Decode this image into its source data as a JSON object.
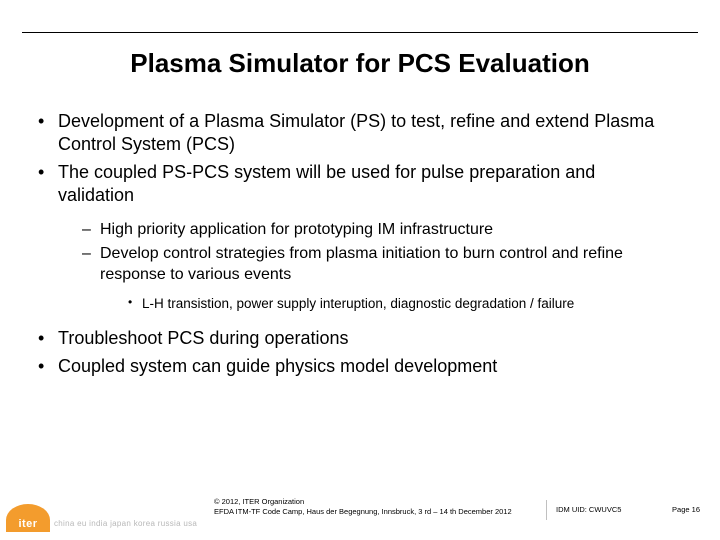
{
  "title": "Plasma Simulator for PCS Evaluation",
  "bullets": {
    "b1": "Development of a Plasma Simulator (PS) to test, refine and extend Plasma Control System (PCS)",
    "b2": "The coupled PS-PCS system will be used for pulse preparation and validation",
    "b2_s1": "High priority application for prototyping IM infrastructure",
    "b2_s2": "Develop control strategies from plasma initiation to burn control and refine response to various events",
    "b2_s2_t1": "L-H transistion, power supply interuption, diagnostic degradation / failure",
    "b3": "Troubleshoot PCS during operations",
    "b4": "Coupled system can guide physics model development"
  },
  "footer": {
    "logo_text": "iter",
    "partners": "china eu india japan korea russia usa",
    "copyright_line1": "© 2012, ITER Organization",
    "copyright_line2": "EFDA ITM-TF Code Camp, Haus der Begegnung, Innsbruck, 3 rd – 14 th December 2012",
    "idm": "IDM UID: CWUVC5",
    "page": "Page 16"
  },
  "colors": {
    "text": "#000000",
    "accent": "#f39c2d",
    "partners_gray": "#b8b8b8",
    "background": "#ffffff"
  }
}
